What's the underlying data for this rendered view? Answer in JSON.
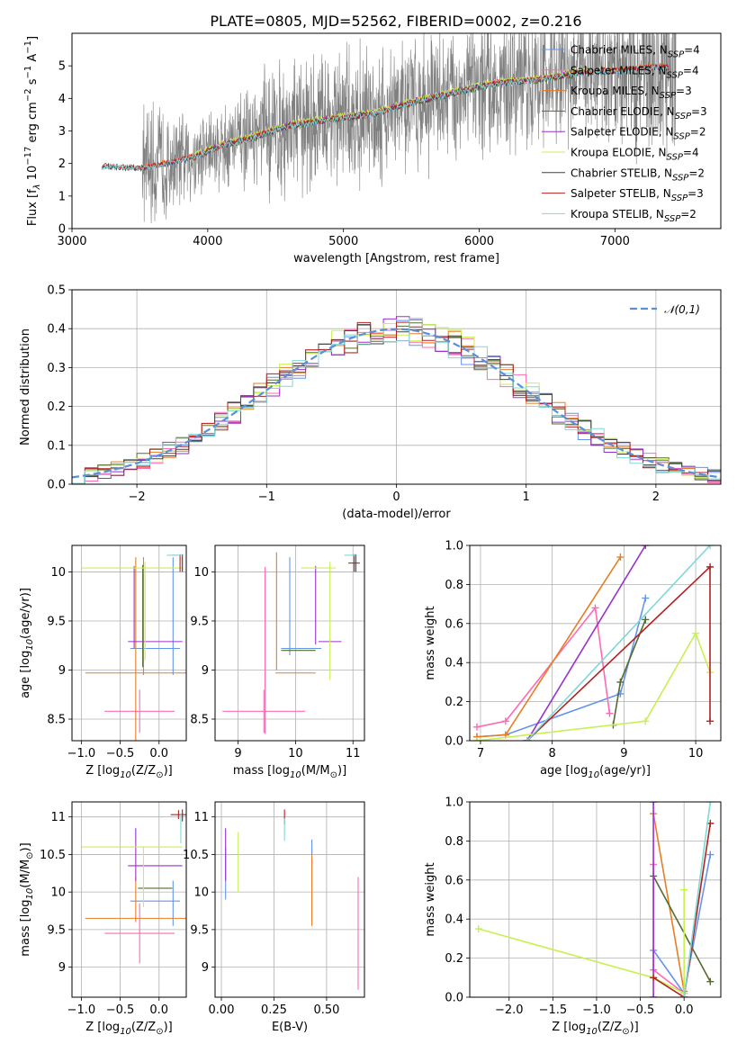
{
  "figure_title": "PLATE=0805, MJD=52562, FIBERID=0002, z=0.216",
  "chart_data": [
    {
      "id": "spectrum",
      "type": "line",
      "xlabel": "wavelength [Angstrom, rest frame]",
      "ylabel": "Flux [f$_\\lambda$ 10$^{-17}$ erg cm$^{-2}$ s$^{-1}$ A$^{-1}$]",
      "xlim": [
        3000,
        7780
      ],
      "ylim": [
        0,
        6
      ],
      "xticks": [
        3000,
        4000,
        5000,
        6000,
        7000
      ],
      "yticks": [
        0,
        1,
        2,
        3,
        4,
        5
      ],
      "grid": false,
      "legend_position": "top-right",
      "observed_data": {
        "color": "#808080",
        "x_range": [
          3220,
          7450
        ],
        "continuum_knots_x": [
          3220,
          3300,
          3500,
          3700,
          3900,
          4100,
          4300,
          4600,
          4900,
          5200,
          5500,
          5800,
          6100,
          6400,
          6700,
          7000,
          7300,
          7450
        ],
        "continuum_knots_y": [
          1.9,
          1.9,
          1.85,
          2.0,
          2.2,
          2.55,
          2.75,
          3.15,
          3.35,
          3.5,
          3.85,
          4.15,
          4.45,
          4.55,
          4.75,
          4.85,
          4.95,
          4.95
        ]
      },
      "series": [
        {
          "name": "Chabrier MILES, N$_{SSP}$=4",
          "color": "#6495ed",
          "x_range": [
            3540,
            7400
          ],
          "offset": 0.0
        },
        {
          "name": "Salpeter MILES, N$_{SSP}$=4",
          "color": "#ff69b4",
          "x_range": [
            3540,
            7400
          ],
          "offset": 0.02
        },
        {
          "name": "Kroupa MILES, N$_{SSP}$=3",
          "color": "#e87d23",
          "x_range": [
            3540,
            7400
          ],
          "offset": 0.04
        },
        {
          "name": "Chabrier ELODIE, N$_{SSP}$=3",
          "color": "#556b2f",
          "x_range": [
            3900,
            6800
          ],
          "offset": -0.02
        },
        {
          "name": "Salpeter ELODIE, N$_{SSP}$=2",
          "color": "#9932cc",
          "x_range": [
            3900,
            6800
          ],
          "offset": 0.05
        },
        {
          "name": "Kroupa ELODIE, N$_{SSP}$=4",
          "color": "#c8f050",
          "x_range": [
            3900,
            6800
          ],
          "offset": 0.08
        },
        {
          "name": "Chabrier STELIB, N$_{SSP}$=2",
          "color": "#404040",
          "x_range": [
            3220,
            7400
          ],
          "offset": 0.0
        },
        {
          "name": "Salpeter STELIB, N$_{SSP}$=3",
          "color": "#b22222",
          "x_range": [
            3220,
            7400
          ],
          "offset": 0.01
        },
        {
          "name": "Kroupa STELIB, N$_{SSP}$=2",
          "color": "#7fd8d8",
          "x_range": [
            3220,
            7400
          ],
          "offset": -0.01
        }
      ]
    },
    {
      "id": "residuals",
      "type": "histogram",
      "xlabel": "(data-model)/error",
      "ylabel": "Normed distribution",
      "xlim": [
        -2.5,
        2.5
      ],
      "ylim": [
        0,
        0.5
      ],
      "xticks": [
        -2,
        -1,
        0,
        1,
        2
      ],
      "yticks": [
        0.0,
        0.1,
        0.2,
        0.3,
        0.4,
        0.5
      ],
      "grid": true,
      "bin_width": 0.1,
      "legend_position": "top-right",
      "reference_curve": {
        "name": "$\\mathcal{N}(0,1)$",
        "color": "#5b8fd8",
        "style": "dashed"
      },
      "series_colors": [
        "#6495ed",
        "#ff69b4",
        "#e87d23",
        "#556b2f",
        "#9932cc",
        "#c8f050",
        "#404040",
        "#b22222",
        "#7fd8d8"
      ],
      "series_scatter_seeds": [
        11,
        23,
        37,
        41,
        53,
        67,
        71,
        83,
        97
      ]
    },
    {
      "id": "age_vs_Z",
      "type": "errorbar",
      "xlabel": "Z [log$_{10}$(Z/Z$_\\odot$)]",
      "ylabel": "age  [log$_{10}$(age/yr)]",
      "xlim": [
        -1.12,
        0.35
      ],
      "ylim": [
        8.28,
        10.27
      ],
      "xticks": [
        -1.0,
        -0.5,
        0.0
      ],
      "xtick_labels": [
        "−1.0",
        "−0.5",
        "0.0"
      ],
      "yticks": [
        8.5,
        9.0,
        9.5,
        10.0
      ],
      "grid": true,
      "points": [
        {
          "color": "#6495ed",
          "x": 0.2,
          "xerr": 0.03,
          "y": 10.17,
          "yerr": 0.0
        },
        {
          "color": "#6495ed",
          "x": -0.05,
          "xerr": 0.32,
          "y": 9.22,
          "yerr": 0.0
        },
        {
          "color": "#6495ed",
          "x": 0.18,
          "xerr": 0.0,
          "y": 9.55,
          "yerr": 0.6
        },
        {
          "color": "#ff69b4",
          "x": -0.25,
          "xerr": 0.45,
          "y": 8.58,
          "yerr": 0.22
        },
        {
          "color": "#e87d23",
          "x": -0.3,
          "xerr": 0.65,
          "y": 8.97,
          "yerr": 1.18
        },
        {
          "color": "#e87d23",
          "x": -0.2,
          "xerr": 0.0,
          "y": 9.55,
          "yerr": 0.6
        },
        {
          "color": "#556b2f",
          "x": -0.21,
          "xerr": 0.0,
          "y": 9.55,
          "yerr": 0.52
        },
        {
          "color": "#9932cc",
          "x": -0.05,
          "xerr": 0.35,
          "y": 9.29,
          "yerr": 0.0
        },
        {
          "color": "#9932cc",
          "x": -0.32,
          "xerr": 0.0,
          "y": 9.64,
          "yerr": 0.42
        },
        {
          "color": "#c8f050",
          "x": -0.35,
          "xerr": 0.65,
          "y": 10.04,
          "yerr": 0.0
        },
        {
          "color": "#c8f050",
          "x": -0.18,
          "xerr": 0.0,
          "y": 9.6,
          "yerr": 0.5
        },
        {
          "color": "#404040",
          "x": 0.3,
          "xerr": 0.0,
          "y": 10.09,
          "yerr": 0.09
        },
        {
          "color": "#b22222",
          "x": 0.27,
          "xerr": 0.0,
          "y": 10.09,
          "yerr": 0.09
        },
        {
          "color": "#7fd8d8",
          "x": 0.2,
          "xerr": 0.1,
          "y": 10.17,
          "yerr": 0.0
        }
      ]
    },
    {
      "id": "age_vs_mass",
      "type": "errorbar",
      "xlabel": "mass [log$_{10}$(M/M$_\\odot$)]",
      "ylabel": "",
      "xlim": [
        8.6,
        11.2
      ],
      "ylim": [
        8.28,
        10.27
      ],
      "xticks": [
        9,
        10,
        11
      ],
      "yticks": [
        8.5,
        9.0,
        9.5,
        10.0
      ],
      "grid": true,
      "points": [
        {
          "color": "#6495ed",
          "x": 9.9,
          "xerr": 0.0,
          "y": 9.65,
          "yerr": 0.5
        },
        {
          "color": "#6495ed",
          "x": 10.1,
          "xerr": 0.35,
          "y": 9.22,
          "yerr": 0.0
        },
        {
          "color": "#ff69b4",
          "x": 9.45,
          "xerr": 0.72,
          "y": 8.58,
          "yerr": 0.22
        },
        {
          "color": "#ff69b4",
          "x": 9.47,
          "xerr": 0.0,
          "y": 9.2,
          "yerr": 0.85
        },
        {
          "color": "#e87d23",
          "x": 9.67,
          "xerr": 0.0,
          "y": 9.6,
          "yerr": 0.6
        },
        {
          "color": "#e87d23",
          "x": 10.0,
          "xerr": 0.35,
          "y": 8.97,
          "yerr": 0.0
        },
        {
          "color": "#556b2f",
          "x": 10.05,
          "xerr": 0.3,
          "y": 9.2,
          "yerr": 0.0
        },
        {
          "color": "#9932cc",
          "x": 10.35,
          "xerr": 0.0,
          "y": 9.66,
          "yerr": 0.4
        },
        {
          "color": "#9932cc",
          "x": 10.6,
          "xerr": 0.2,
          "y": 9.29,
          "yerr": 0.0
        },
        {
          "color": "#c8f050",
          "x": 10.6,
          "xerr": 0.0,
          "y": 9.5,
          "yerr": 0.6
        },
        {
          "color": "#c8f050",
          "x": 10.4,
          "xerr": 0.3,
          "y": 10.04,
          "yerr": 0.0
        },
        {
          "color": "#404040",
          "x": 11.05,
          "xerr": 0.0,
          "y": 10.09,
          "yerr": 0.09
        },
        {
          "color": "#b22222",
          "x": 11.02,
          "xerr": 0.1,
          "y": 10.09,
          "yerr": 0.09
        },
        {
          "color": "#7fd8d8",
          "x": 10.95,
          "xerr": 0.1,
          "y": 10.17,
          "yerr": 0.0
        }
      ]
    },
    {
      "id": "massweight_vs_age",
      "type": "line",
      "xlabel": "age  [log$_{10}$(age/yr)]",
      "ylabel": "mass weight",
      "xlim": [
        6.85,
        10.35
      ],
      "ylim": [
        0,
        1
      ],
      "xticks": [
        7,
        8,
        9,
        10
      ],
      "yticks": [
        0.0,
        0.2,
        0.4,
        0.6,
        0.8,
        1.0
      ],
      "grid": true,
      "series": [
        {
          "color": "#6495ed",
          "x": [
            6.95,
            7.35,
            8.95,
            9.3
          ],
          "y": [
            0.02,
            0.03,
            0.24,
            0.73
          ]
        },
        {
          "color": "#ff69b4",
          "x": [
            6.95,
            7.35,
            8.6,
            8.8
          ],
          "y": [
            0.07,
            0.1,
            0.68,
            0.14
          ]
        },
        {
          "color": "#e87d23",
          "x": [
            6.95,
            7.35,
            8.95
          ],
          "y": [
            0.02,
            0.03,
            0.94
          ]
        },
        {
          "color": "#556b2f",
          "x": [
            8.85,
            8.95,
            9.3
          ],
          "y": [
            0.08,
            0.3,
            0.62
          ]
        },
        {
          "color": "#9932cc",
          "x": [
            7.65,
            9.3
          ],
          "y": [
            0.0,
            1.0
          ]
        },
        {
          "color": "#c8f050",
          "x": [
            6.95,
            9.3,
            10.0,
            10.2
          ],
          "y": [
            0.0,
            0.1,
            0.55,
            0.35
          ]
        },
        {
          "color": "#b22222",
          "x": [
            7.65,
            10.2,
            10.2
          ],
          "y": [
            0.0,
            0.89,
            0.1
          ]
        },
        {
          "color": "#7fd8d8",
          "x": [
            7.65,
            10.2
          ],
          "y": [
            0.0,
            1.0
          ]
        }
      ]
    },
    {
      "id": "mass_vs_Z",
      "type": "errorbar",
      "xlabel": "Z [log$_{10}$(Z/Z$_\\odot$)]",
      "ylabel": "mass [log$_{10}$(M/M$_\\odot$)]",
      "xlim": [
        -1.12,
        0.35
      ],
      "ylim": [
        8.6,
        11.2
      ],
      "xticks": [
        -1.0,
        -0.5,
        0.0
      ],
      "xtick_labels": [
        "−1.0",
        "−0.5",
        "0.0"
      ],
      "yticks": [
        9.0,
        9.5,
        10.0,
        10.5,
        11.0
      ],
      "grid": true,
      "points": [
        {
          "color": "#6495ed",
          "x": -0.05,
          "xerr": 0.32,
          "y": 9.88,
          "yerr": 0.0
        },
        {
          "color": "#6495ed",
          "x": 0.18,
          "xerr": 0.0,
          "y": 9.85,
          "yerr": 0.3
        },
        {
          "color": "#ff69b4",
          "x": -0.25,
          "xerr": 0.45,
          "y": 9.45,
          "yerr": 0.4
        },
        {
          "color": "#e87d23",
          "x": -0.3,
          "xerr": 0.65,
          "y": 9.65,
          "yerr": 0.0
        },
        {
          "color": "#e87d23",
          "x": -0.3,
          "xerr": 0.0,
          "y": 9.9,
          "yerr": 0.3
        },
        {
          "color": "#556b2f",
          "x": -0.05,
          "xerr": 0.22,
          "y": 10.05,
          "yerr": 0.0
        },
        {
          "color": "#9932cc",
          "x": -0.05,
          "xerr": 0.35,
          "y": 10.35,
          "yerr": 0.0
        },
        {
          "color": "#9932cc",
          "x": -0.3,
          "xerr": 0.0,
          "y": 10.5,
          "yerr": 0.35
        },
        {
          "color": "#c8f050",
          "x": -0.35,
          "xerr": 0.65,
          "y": 10.6,
          "yerr": 0.0
        },
        {
          "color": "#c8f050",
          "x": -0.2,
          "xerr": 0.0,
          "y": 10.2,
          "yerr": 0.4
        },
        {
          "color": "#404040",
          "x": 0.3,
          "xerr": 0.0,
          "y": 11.02,
          "yerr": 0.08
        },
        {
          "color": "#b22222",
          "x": 0.25,
          "xerr": 0.1,
          "y": 11.03,
          "yerr": 0.06
        },
        {
          "color": "#7fd8d8",
          "x": 0.28,
          "xerr": 0.0,
          "y": 10.85,
          "yerr": 0.2
        }
      ]
    },
    {
      "id": "mass_vs_EBV",
      "type": "errorbar",
      "xlabel": "E(B-V)",
      "ylabel": "",
      "xlim": [
        -0.03,
        0.68
      ],
      "ylim": [
        8.6,
        11.2
      ],
      "xticks": [
        0.0,
        0.25,
        0.5
      ],
      "xtick_labels": [
        "0.00",
        "0.25",
        "0.50"
      ],
      "yticks": [
        9.0,
        9.5,
        10.0,
        10.5,
        11.0
      ],
      "grid": true,
      "points": [
        {
          "color": "#6495ed",
          "x": 0.02,
          "xerr": 0.0,
          "y": 10.25,
          "yerr": 0.35
        },
        {
          "color": "#ff69b4",
          "x": 0.65,
          "xerr": 0.0,
          "y": 9.45,
          "yerr": 0.75
        },
        {
          "color": "#e87d23",
          "x": 0.43,
          "xerr": 0.0,
          "y": 10.05,
          "yerr": 0.5
        },
        {
          "color": "#6495ed",
          "x": 0.43,
          "xerr": 0.0,
          "y": 10.6,
          "yerr": 0.1
        },
        {
          "color": "#9932cc",
          "x": 0.02,
          "xerr": 0.0,
          "y": 10.5,
          "yerr": 0.35
        },
        {
          "color": "#c8f050",
          "x": 0.08,
          "xerr": 0.0,
          "y": 10.4,
          "yerr": 0.4
        },
        {
          "color": "#b22222",
          "x": 0.3,
          "xerr": 0.0,
          "y": 11.0,
          "yerr": 0.1
        },
        {
          "color": "#7fd8d8",
          "x": 0.3,
          "xerr": 0.0,
          "y": 10.83,
          "yerr": 0.15
        }
      ]
    },
    {
      "id": "massweight_vs_Z",
      "type": "line",
      "xlabel": "Z [log$_{10}$(Z/Z$_\\odot$)]",
      "ylabel": "mass weight",
      "xlim": [
        -2.45,
        0.42
      ],
      "ylim": [
        0,
        1
      ],
      "xticks": [
        -2.0,
        -1.5,
        -1.0,
        -0.5,
        0.0
      ],
      "xtick_labels": [
        "−2.0",
        "−1.5",
        "−1.0",
        "−0.5",
        "0.0"
      ],
      "yticks": [
        0.0,
        0.2,
        0.4,
        0.6,
        0.8,
        1.0
      ],
      "grid": true,
      "series": [
        {
          "color": "#6495ed",
          "x": [
            -0.35,
            0.0,
            0.3
          ],
          "y": [
            0.24,
            0.02,
            0.73
          ]
        },
        {
          "color": "#ff69b4",
          "x": [
            -0.35,
            -0.35,
            0.0
          ],
          "y": [
            0.68,
            0.14,
            0.02
          ]
        },
        {
          "color": "#e87d23",
          "x": [
            -0.35,
            0.0
          ],
          "y": [
            0.94,
            0.03
          ]
        },
        {
          "color": "#556b2f",
          "x": [
            -0.35,
            0.3
          ],
          "y": [
            0.62,
            0.08
          ]
        },
        {
          "color": "#9932cc",
          "x": [
            -0.35,
            -0.35
          ],
          "y": [
            0.0,
            1.0
          ]
        },
        {
          "color": "#c8f050",
          "x": [
            -2.35,
            -0.35,
            0.0,
            0.0
          ],
          "y": [
            0.35,
            0.1,
            0.02,
            0.55
          ]
        },
        {
          "color": "#b22222",
          "x": [
            -0.35,
            0.0,
            0.3
          ],
          "y": [
            0.1,
            0.0,
            0.89
          ]
        },
        {
          "color": "#7fd8d8",
          "x": [
            0.0,
            0.3
          ],
          "y": [
            0.0,
            1.0
          ]
        }
      ]
    }
  ]
}
